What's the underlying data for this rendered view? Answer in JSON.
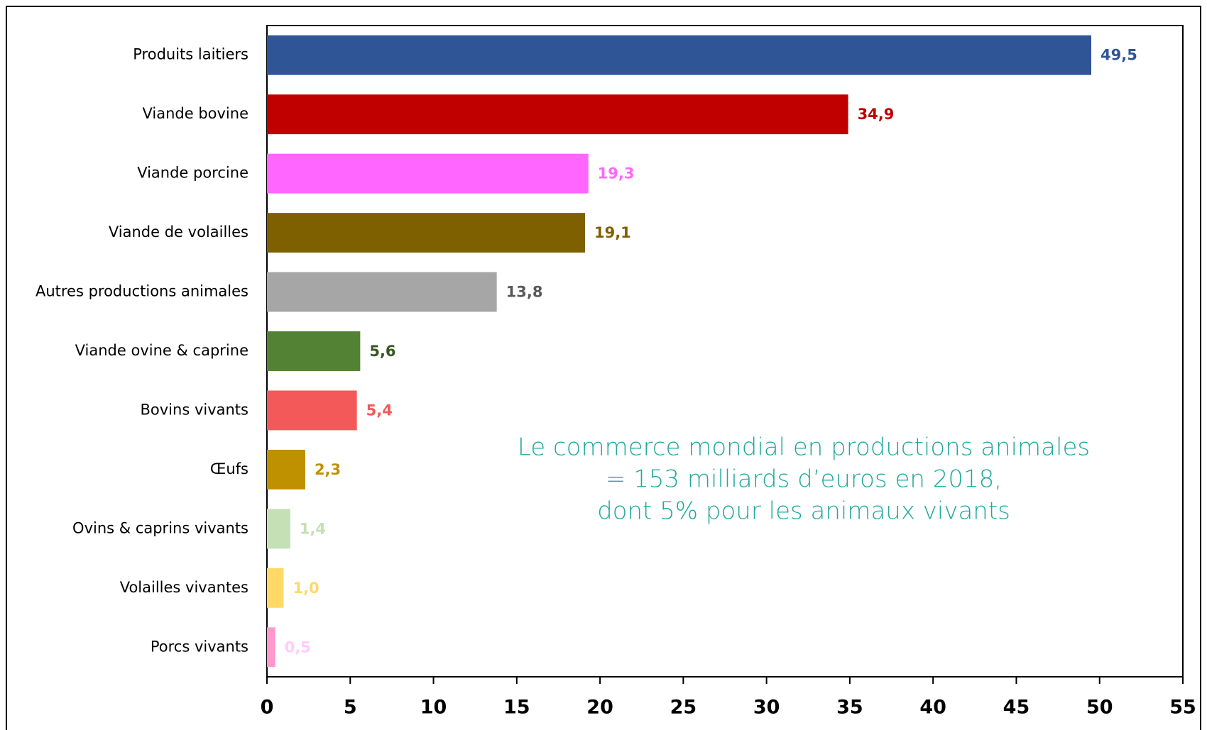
{
  "chart_data": {
    "type": "bar",
    "orientation": "horizontal",
    "categories": [
      "Produits laitiers",
      "Viande bovine",
      "Viande porcine",
      "Viande de volailles",
      "Autres productions animales",
      "Viande ovine & caprine",
      "Bovins vivants",
      "Œufs",
      "Ovins & caprins vivants",
      "Volailles vivantes",
      "Porcs vivants"
    ],
    "values": [
      49.5,
      34.9,
      19.3,
      19.1,
      13.8,
      5.6,
      5.4,
      2.3,
      1.4,
      1.0,
      0.5
    ],
    "value_labels": [
      "49,5",
      "34,9",
      "19,3",
      "19,1",
      "13,8",
      "5,6",
      "5,4",
      "2,3",
      "1,4",
      "1,0",
      "0,5"
    ],
    "colors": [
      "#2f5597",
      "#c00000",
      "#ff66ff",
      "#7f6000",
      "#a6a6a6",
      "#548235",
      "#f4595a",
      "#bf9000",
      "#c5e0b4",
      "#ffd966",
      "#ff99cc"
    ],
    "value_label_colors": [
      "#2f5597",
      "#c00000",
      "#ff66ff",
      "#7f6000",
      "#595959",
      "#385723",
      "#f4595a",
      "#bf9000",
      "#c5e0b4",
      "#ffd966",
      "#ffccff"
    ],
    "xlim": [
      0,
      55
    ],
    "xticks": [
      0,
      5,
      10,
      15,
      20,
      25,
      30,
      35,
      40,
      45,
      50,
      55
    ],
    "annotation": [
      "Le commerce mondial en productions animales",
      "= 153 milliards d’euros en 2018,",
      "dont 5% pour les animaux vivants"
    ]
  }
}
